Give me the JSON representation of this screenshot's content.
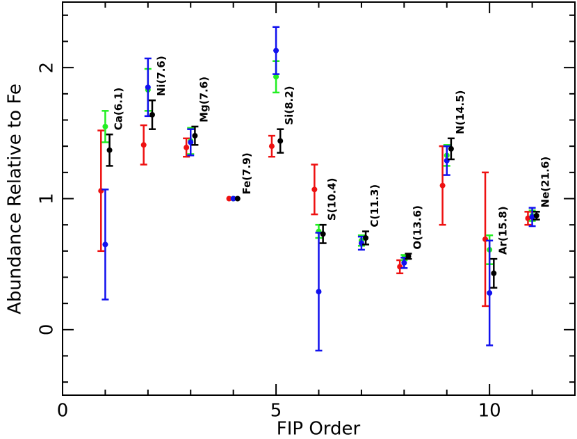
{
  "chart_data": {
    "type": "scatter",
    "xlabel": "FIP Order",
    "ylabel": "Abundance Relative to Fe",
    "x": [
      1,
      2,
      3,
      4,
      5,
      6,
      7,
      8,
      9,
      10,
      11
    ],
    "categories": [
      "Ca(6.1)",
      "Ni(7.6)",
      "Mg(7.6)",
      "Fe(7.9)",
      "Si(8.2)",
      "S(10.4)",
      "C(11.3)",
      "O(13.6)",
      "N(14.5)",
      "Ar(15.8)",
      "Ne(21.6)"
    ],
    "series": [
      {
        "color": "#ee1111",
        "values": [
          1.06,
          1.41,
          1.39,
          1.0,
          1.4,
          1.07,
          null,
          0.48,
          1.1,
          0.69,
          0.85
        ],
        "errors": [
          0.46,
          0.15,
          0.07,
          0,
          0.08,
          0.19,
          null,
          0.05,
          0.3,
          0.51,
          0.05
        ]
      },
      {
        "color": "#22ee22",
        "values": [
          1.55,
          1.83,
          1.44,
          1.0,
          1.93,
          0.75,
          0.68,
          0.55,
          1.33,
          0.61,
          0.87
        ],
        "errors": [
          0.12,
          0.16,
          0.1,
          0,
          0.12,
          0.05,
          0.04,
          0.02,
          0.08,
          0.11,
          0.04
        ]
      },
      {
        "color": "#1111ee",
        "values": [
          0.65,
          1.85,
          1.43,
          1.0,
          2.13,
          0.29,
          0.66,
          0.51,
          1.29,
          0.28,
          0.86
        ],
        "errors": [
          0.42,
          0.22,
          0.1,
          0,
          0.18,
          0.45,
          0.05,
          0.04,
          0.11,
          0.4,
          0.07
        ]
      },
      {
        "color": "#000000",
        "values": [
          1.37,
          1.64,
          1.48,
          1.0,
          1.44,
          0.73,
          0.7,
          0.56,
          1.38,
          0.43,
          0.87
        ],
        "errors": [
          0.12,
          0.11,
          0.07,
          0,
          0.09,
          0.07,
          0.05,
          0.02,
          0.08,
          0.11,
          0.03
        ]
      }
    ],
    "xlim": [
      0,
      12
    ],
    "ylim": [
      -0.5,
      2.5
    ],
    "xticks": [
      0,
      5,
      10
    ],
    "yticks": [
      0,
      1,
      2
    ],
    "xminorticks": [
      1,
      2,
      3,
      4,
      6,
      7,
      8,
      9,
      11
    ],
    "yminorticks": [
      -0.4,
      -0.2,
      0.2,
      0.4,
      0.6,
      0.8,
      1.2,
      1.4,
      1.6,
      1.8,
      2.2,
      2.4
    ]
  }
}
